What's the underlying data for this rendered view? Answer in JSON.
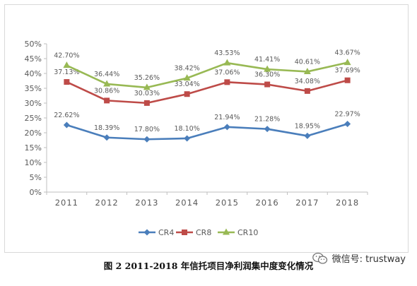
{
  "caption": "图 2 2011-2018 年信托项目净利润集中度变化情况",
  "watermark": {
    "text": "微信号: trustway",
    "icon": "wechat-icon"
  },
  "chart_data": {
    "type": "line",
    "categories": [
      "2011",
      "2012",
      "2013",
      "2014",
      "2015",
      "2016",
      "2017",
      "2018"
    ],
    "ylim": [
      0,
      50
    ],
    "yticks": [
      0,
      5,
      10,
      15,
      20,
      25,
      30,
      35,
      40,
      45,
      50
    ],
    "ytick_format": "%",
    "grid": false,
    "legend": "bottom",
    "series": [
      {
        "name": "CR4",
        "color": "#4a7ebb",
        "marker": "diamond",
        "values": [
          22.62,
          18.39,
          17.8,
          18.1,
          21.94,
          21.28,
          18.95,
          22.97
        ],
        "labels": [
          "22.62%",
          "18.39%",
          "17.80%",
          "18.10%",
          "21.94%",
          "21.28%",
          "18.95%",
          "22.97%"
        ]
      },
      {
        "name": "CR8",
        "color": "#be4b48",
        "marker": "square",
        "values": [
          37.13,
          30.86,
          30.03,
          33.04,
          37.06,
          36.3,
          34.08,
          37.69
        ],
        "labels": [
          "37.13%",
          "30.86%",
          "30.03%",
          "33.04%",
          "37.06%",
          "36.30%",
          "34.08%",
          "37.69%"
        ]
      },
      {
        "name": "CR10",
        "color": "#98b954",
        "marker": "triangle",
        "values": [
          42.7,
          36.44,
          35.26,
          38.42,
          43.53,
          41.41,
          40.61,
          43.67
        ],
        "labels": [
          "42.70%",
          "36.44%",
          "35.26%",
          "38.42%",
          "43.53%",
          "41.41%",
          "40.61%",
          "43.67%"
        ]
      }
    ]
  }
}
